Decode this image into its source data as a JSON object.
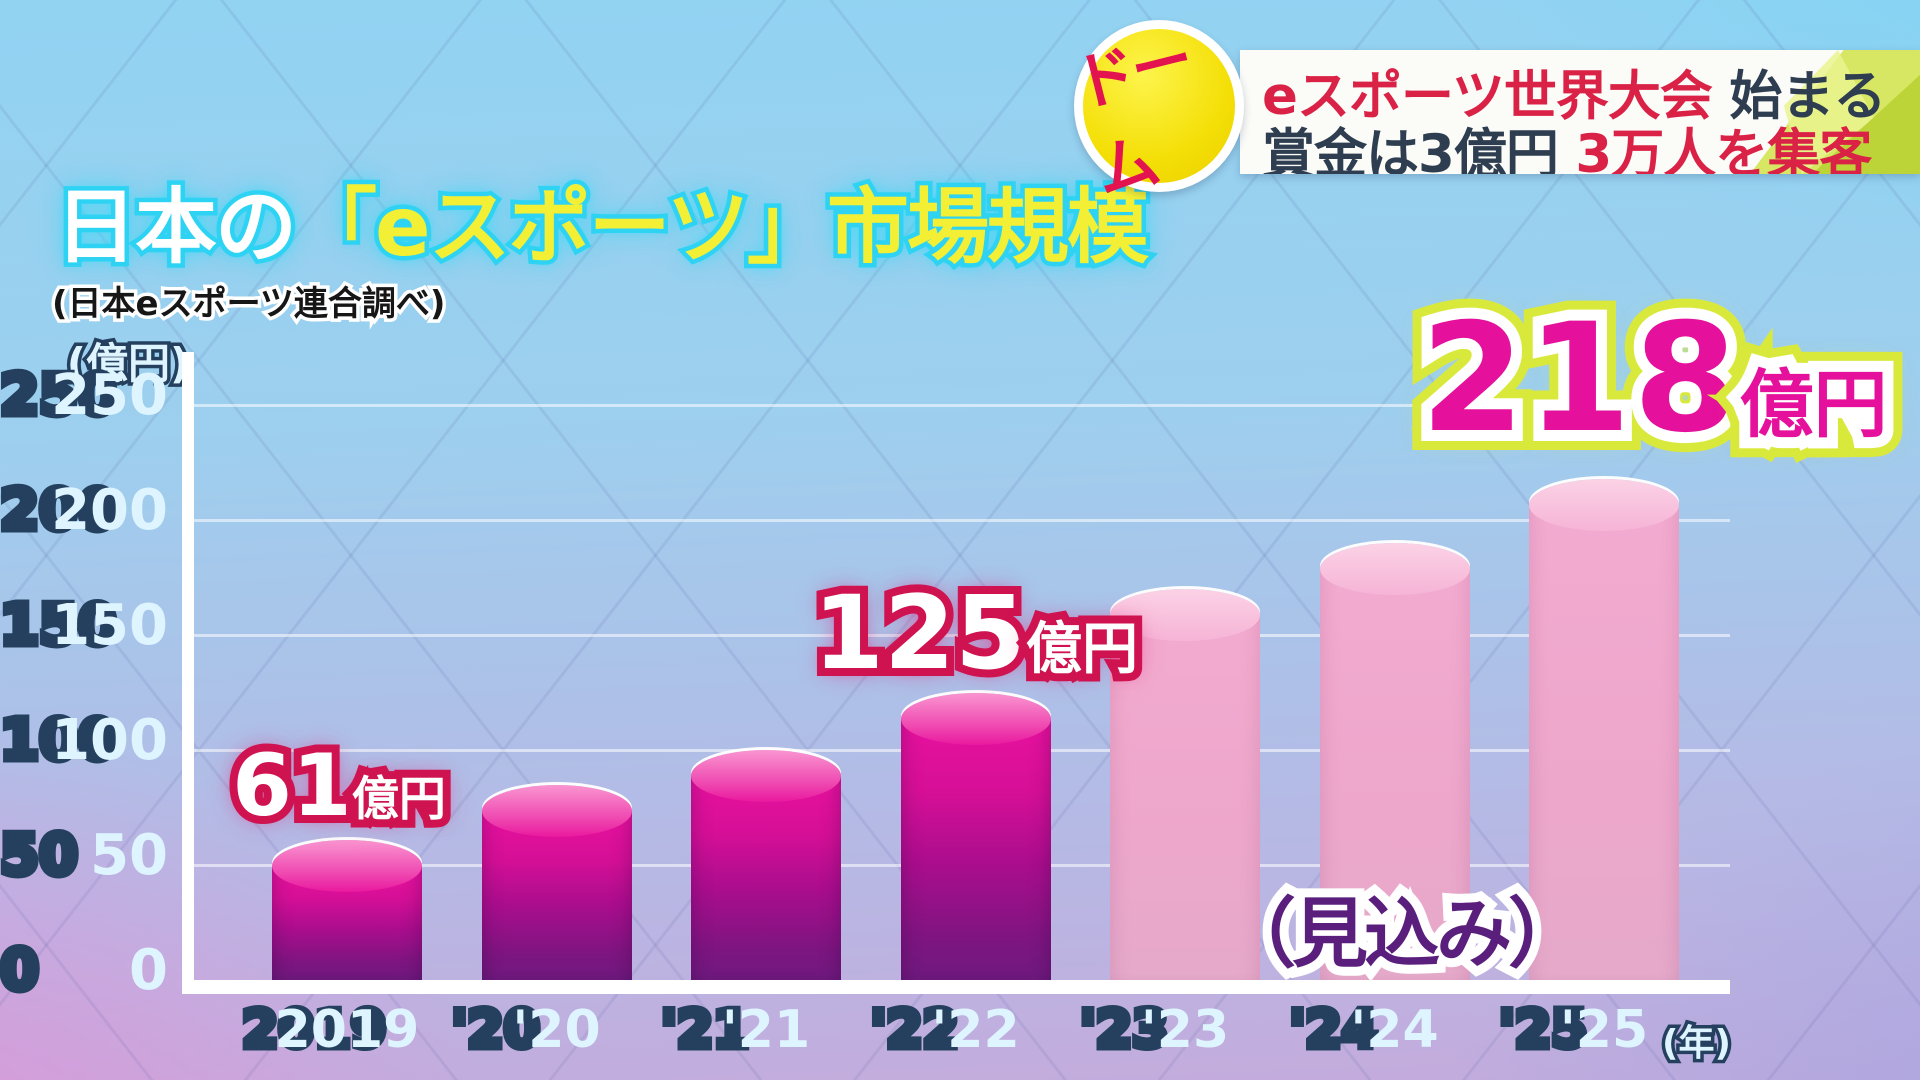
{
  "header": {
    "badge": "ドーム",
    "headline": {
      "l1a": "eスポーツ世界大会",
      "l1b": " 始まる",
      "l2a": "賞金は3億円",
      "l2b": " 3万人を集客",
      "accent_red": "#da2247",
      "dark": "#2e3d4f"
    }
  },
  "title": {
    "lead": "日本の",
    "highlight": "「eスポーツ」市場規模"
  },
  "source": "(日本eスポーツ連合調べ)",
  "chart_data": {
    "type": "bar",
    "title": "日本の「eスポーツ」市場規模",
    "source": "(日本eスポーツ連合調べ)",
    "unit": "億円",
    "ylabel": "(億円)",
    "xlabel": "(年)",
    "ylim": [
      0,
      250
    ],
    "yticks": [
      0,
      50,
      100,
      150,
      200,
      250
    ],
    "grid": true,
    "legend_position": "none",
    "categories": [
      "2019",
      "'20",
      "'21",
      "'22",
      "'23",
      "'24",
      "'25"
    ],
    "bars": [
      {
        "year": "2019",
        "value": 61,
        "labeled": true,
        "forecast": false
      },
      {
        "year": "'20",
        "value": 85,
        "labeled": false,
        "forecast": false,
        "estimated": true
      },
      {
        "year": "'21",
        "value": 100,
        "labeled": false,
        "forecast": false,
        "estimated": true
      },
      {
        "year": "'22",
        "value": 125,
        "labeled": true,
        "forecast": false
      },
      {
        "year": "'23",
        "value": 170,
        "labeled": false,
        "forecast": true,
        "estimated": true
      },
      {
        "year": "'24",
        "value": 190,
        "labeled": false,
        "forecast": true,
        "estimated": true
      },
      {
        "year": "'25",
        "value": 218,
        "labeled": true,
        "forecast": true
      }
    ],
    "value_labels": [
      {
        "bar": "2019",
        "number": "61",
        "unit": "億円",
        "size": "small",
        "style": "white-red"
      },
      {
        "bar": "'22",
        "number": "125",
        "unit": "億円",
        "size": "medium",
        "style": "white-red"
      },
      {
        "bar": "'25",
        "number": "218",
        "unit": "億円",
        "size": "large",
        "style": "pink-lime"
      }
    ],
    "forecast_note": "（見込み）",
    "forecast_from": "'23"
  },
  "colors": {
    "bar_actual_top": "#e8119e",
    "bar_actual_bottom": "#6f1a7e",
    "bar_forecast": "#f0a9cd",
    "title_lead": "#ffffff",
    "title_highlight": "#f3ef34",
    "title_glow": "#2ed3f4",
    "tick_fill": "#def5ff",
    "tick_outline": "#24405e",
    "label_white": "#ffffff",
    "label_crimson_outline": "#cf1350",
    "label_magenta": "#e5109c",
    "label_lime_outline": "#d9e93c",
    "forecast_note_purple": "#5a1f7d",
    "badge_yellow": "#f4df07",
    "badge_text_red": "#e3134f",
    "headline_red": "#da2247",
    "headline_dark": "#2e3d4f",
    "axis_white": "#ffffff"
  }
}
